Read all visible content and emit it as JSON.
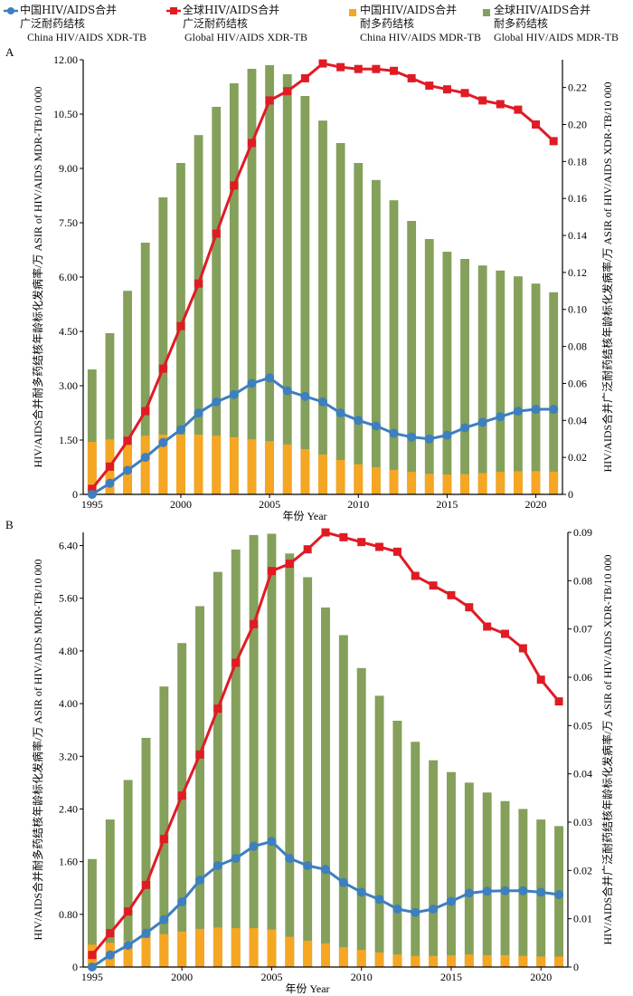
{
  "legend": [
    {
      "zh": "中国HIV/AIDS合并",
      "zh2": "广泛耐药结核",
      "en": "China HIV/AIDS XDR-TB",
      "color": "#3d7fbf",
      "marker": "circle-line"
    },
    {
      "zh": "全球HIV/AIDS合并",
      "zh2": "广泛耐药结核",
      "en": "Global HIV/AIDS XDR-TB",
      "color": "#e01b24",
      "marker": "square-line"
    },
    {
      "zh": "中国HIV/AIDS合并",
      "zh2": "耐多药结核",
      "en": "China HIV/AIDS MDR-TB",
      "color": "#f5a623",
      "marker": "bar"
    },
    {
      "zh": "全球HIV/AIDS合并",
      "zh2": "耐多药结核",
      "en": "Global HIV/AIDS MDR-TB",
      "color": "#84a05a",
      "marker": "bar"
    }
  ],
  "colors": {
    "china_xdr": "#3d7fbf",
    "global_xdr": "#e01b24",
    "china_mdr": "#f5a623",
    "global_mdr": "#84a05a"
  },
  "chart_data": [
    {
      "panel_label": "A",
      "type": "bar+line",
      "x": [
        1995,
        1996,
        1997,
        1998,
        1999,
        2000,
        2001,
        2002,
        2003,
        2004,
        2005,
        2006,
        2007,
        2008,
        2009,
        2010,
        2011,
        2012,
        2013,
        2014,
        2015,
        2016,
        2017,
        2018,
        2019,
        2020,
        2021
      ],
      "xticks": [
        1995,
        2000,
        2005,
        2010,
        2015,
        2020
      ],
      "xlabel": "年份 Year",
      "ylabel_left": "HIV/AIDS合并耐多药结核年龄标化发病率/万 ASIR of HIV/AIDS MDR-TB/10 000",
      "ylabel_right": "HIV/AIDS合并广泛耐药结核年龄标化发病率/万 ASIR of HIV/AIDS XDR-TB/10 000",
      "ylim_left": [
        0,
        12
      ],
      "ylim_right": [
        0,
        0.235
      ],
      "yticks_left": [
        "0",
        "1.50",
        "3.00",
        "4.50",
        "6.00",
        "7.50",
        "9.00",
        "10.50",
        "12.00"
      ],
      "yticks_right": [
        "0",
        "0.02",
        "0.04",
        "0.06",
        "0.08",
        "0.10",
        "0.12",
        "0.14",
        "0.16",
        "0.18",
        "0.20",
        "0.22"
      ],
      "series": [
        {
          "name": "全球HIV/AIDS合并耐多药结核 Global HIV/AIDS MDR-TB",
          "type": "bar",
          "axis": "left",
          "color": "#84a05a",
          "values": [
            3.45,
            4.45,
            5.62,
            6.95,
            8.2,
            9.15,
            9.92,
            10.7,
            11.35,
            11.75,
            11.85,
            11.6,
            11.0,
            10.32,
            9.7,
            9.15,
            8.68,
            8.12,
            7.55,
            7.05,
            6.7,
            6.5,
            6.32,
            6.18,
            6.02,
            5.82,
            5.58
          ]
        },
        {
          "name": "中国HIV/AIDS合并耐多药结核 China HIV/AIDS MDR-TB",
          "type": "bar",
          "axis": "left",
          "color": "#f5a623",
          "values": [
            1.45,
            1.52,
            1.58,
            1.62,
            1.65,
            1.65,
            1.65,
            1.62,
            1.58,
            1.52,
            1.47,
            1.38,
            1.25,
            1.1,
            0.95,
            0.83,
            0.75,
            0.68,
            0.62,
            0.57,
            0.55,
            0.56,
            0.59,
            0.62,
            0.64,
            0.64,
            0.63
          ]
        },
        {
          "name": "全球HIV/AIDS合并广泛耐药结核 Global HIV/AIDS XDR-TB",
          "type": "line",
          "axis": "right",
          "color": "#e01b24",
          "marker": "square",
          "values": [
            0.003,
            0.015,
            0.029,
            0.045,
            0.068,
            0.091,
            0.114,
            0.141,
            0.167,
            0.19,
            0.213,
            0.218,
            0.225,
            0.233,
            0.231,
            0.23,
            0.23,
            0.229,
            0.225,
            0.221,
            0.219,
            0.217,
            0.213,
            0.211,
            0.208,
            0.2,
            0.191
          ]
        },
        {
          "name": "中国HIV/AIDS合并广泛耐药结核 China HIV/AIDS XDR-TB",
          "type": "line",
          "axis": "right",
          "color": "#3d7fbf",
          "marker": "circle",
          "values": [
            0.0,
            0.006,
            0.013,
            0.02,
            0.028,
            0.035,
            0.044,
            0.05,
            0.054,
            0.06,
            0.063,
            0.056,
            0.053,
            0.05,
            0.044,
            0.04,
            0.037,
            0.033,
            0.031,
            0.03,
            0.032,
            0.036,
            0.039,
            0.042,
            0.045,
            0.046,
            0.046
          ]
        }
      ]
    },
    {
      "panel_label": "B",
      "type": "bar+line",
      "x": [
        1995,
        1996,
        1997,
        1998,
        1999,
        2000,
        2001,
        2002,
        2003,
        2004,
        2005,
        2006,
        2007,
        2008,
        2009,
        2010,
        2011,
        2012,
        2013,
        2014,
        2015,
        2016,
        2017,
        2018,
        2019,
        2020,
        2021
      ],
      "xticks": [
        1995,
        2000,
        2005,
        2010,
        2015,
        2020
      ],
      "xlabel": "年份 Year",
      "ylabel_left": "HIV/AIDS合并耐多药结核年龄标化发病率/万 ASIR of HIV/AIDS MDR-TB/10 000",
      "ylabel_right": "HIV/AIDS合并广泛耐药结核年龄标化发病率/万 ASIR of HIV/AIDS XDR-TB/10 000",
      "ylim_left": [
        0,
        6.6
      ],
      "ylim_right": [
        0,
        0.09
      ],
      "yticks_left": [
        "0",
        "0.80",
        "1.60",
        "2.40",
        "3.20",
        "4.00",
        "4.80",
        "5.60",
        "6.40"
      ],
      "yticks_right": [
        "0",
        "0.01",
        "0.02",
        "0.03",
        "0.04",
        "0.05",
        "0.06",
        "0.07",
        "0.08",
        "0.09"
      ],
      "series": [
        {
          "name": "全球HIV/AIDS合并耐多药结核 Global HIV/AIDS MDR-TB",
          "type": "bar",
          "axis": "left",
          "color": "#84a05a",
          "values": [
            1.64,
            2.24,
            2.84,
            3.48,
            4.26,
            4.92,
            5.48,
            6.0,
            6.34,
            6.56,
            6.58,
            6.28,
            5.92,
            5.46,
            5.04,
            4.54,
            4.12,
            3.74,
            3.42,
            3.14,
            2.96,
            2.8,
            2.65,
            2.52,
            2.4,
            2.24,
            2.14
          ]
        },
        {
          "name": "中国HIV/AIDS合并耐多药结核 China HIV/AIDS MDR-TB",
          "type": "bar",
          "axis": "left",
          "color": "#f5a623",
          "values": [
            0.34,
            0.37,
            0.4,
            0.44,
            0.5,
            0.54,
            0.58,
            0.6,
            0.59,
            0.59,
            0.57,
            0.46,
            0.4,
            0.36,
            0.3,
            0.26,
            0.22,
            0.19,
            0.17,
            0.17,
            0.18,
            0.19,
            0.18,
            0.18,
            0.17,
            0.16,
            0.16
          ]
        },
        {
          "name": "全球HIV/AIDS合并广泛耐药结核 Global HIV/AIDS XDR-TB",
          "type": "line",
          "axis": "right",
          "color": "#e01b24",
          "marker": "square",
          "values": [
            0.0025,
            0.007,
            0.0115,
            0.017,
            0.0265,
            0.0355,
            0.044,
            0.0535,
            0.063,
            0.071,
            0.082,
            0.0835,
            0.0865,
            0.09,
            0.089,
            0.088,
            0.087,
            0.086,
            0.081,
            0.079,
            0.077,
            0.0745,
            0.0705,
            0.069,
            0.066,
            0.0595,
            0.055
          ]
        },
        {
          "name": "中国HIV/AIDS合并广泛耐药结核 China HIV/AIDS XDR-TB",
          "type": "line",
          "axis": "right",
          "color": "#3d7fbf",
          "marker": "circle",
          "values": [
            0.0,
            0.0025,
            0.0045,
            0.007,
            0.0098,
            0.0135,
            0.018,
            0.021,
            0.0225,
            0.025,
            0.026,
            0.0225,
            0.021,
            0.0202,
            0.0175,
            0.0155,
            0.014,
            0.012,
            0.0113,
            0.012,
            0.0136,
            0.0153,
            0.0157,
            0.0158,
            0.0158,
            0.0155,
            0.015
          ]
        }
      ]
    }
  ]
}
